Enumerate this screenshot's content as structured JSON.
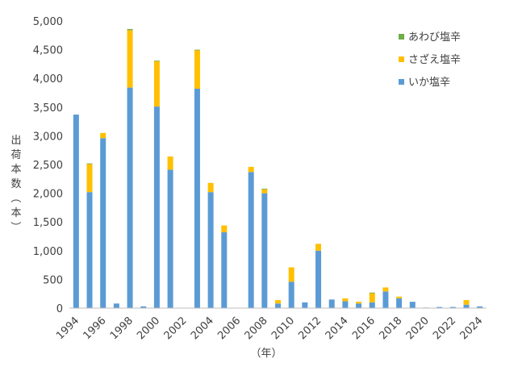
{
  "chart_data": {
    "type": "bar",
    "stacked": true,
    "years": [
      1994,
      1995,
      1996,
      1997,
      1998,
      1999,
      2000,
      2001,
      2002,
      2003,
      2004,
      2005,
      2006,
      2007,
      2008,
      2009,
      2010,
      2011,
      2012,
      2013,
      2014,
      2015,
      2016,
      2017,
      2018,
      2019,
      2020,
      2021,
      2022,
      2023,
      2024
    ],
    "x_tick_labels": [
      "1994",
      "1996",
      "1998",
      "2000",
      "2002",
      "2004",
      "2006",
      "2008",
      "2010",
      "2012",
      "2014",
      "2016",
      "2018",
      "2020",
      "2022",
      "2024"
    ],
    "xlabel": "（年）",
    "ylabel": "出荷本数（本）",
    "ylim": [
      0,
      5000
    ],
    "y_tick_labels": [
      "0",
      "500",
      "1,000",
      "1,500",
      "2,000",
      "2,500",
      "3,000",
      "3,500",
      "4,000",
      "4,500",
      "5,000"
    ],
    "grid": false,
    "legend_position": "top-right",
    "series": [
      {
        "name": "いか塩辛",
        "color": "#5b9bd5",
        "values": [
          3370,
          2020,
          2960,
          80,
          3840,
          30,
          3510,
          2410,
          0,
          3820,
          2020,
          1320,
          0,
          2370,
          2000,
          80,
          460,
          100,
          1000,
          150,
          120,
          80,
          100,
          290,
          170,
          110,
          10,
          20,
          20,
          60,
          30
        ]
      },
      {
        "name": "さざえ塩辛",
        "color": "#ffc000",
        "values": [
          0,
          490,
          90,
          0,
          1000,
          0,
          790,
          230,
          0,
          670,
          160,
          120,
          0,
          90,
          70,
          60,
          250,
          0,
          120,
          0,
          50,
          30,
          160,
          70,
          30,
          0,
          0,
          0,
          0,
          80,
          0
        ]
      },
      {
        "name": "あわび塩辛",
        "color": "#70ad47",
        "values": [
          0,
          10,
          0,
          0,
          20,
          0,
          10,
          0,
          0,
          10,
          0,
          0,
          0,
          0,
          10,
          0,
          0,
          0,
          0,
          0,
          0,
          0,
          10,
          0,
          0,
          0,
          0,
          0,
          0,
          0,
          0
        ]
      }
    ],
    "legend_order": [
      2,
      1,
      0
    ]
  }
}
